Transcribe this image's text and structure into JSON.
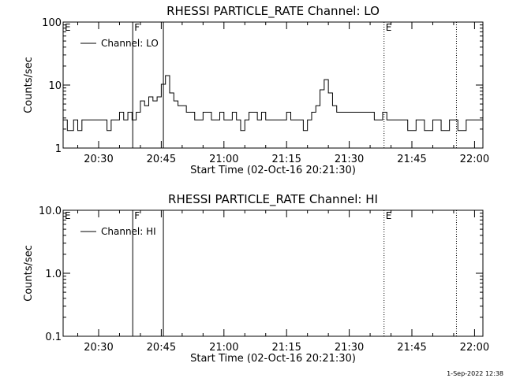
{
  "footer": "1-Sep-2022 12:38",
  "chart_data": [
    {
      "type": "line",
      "title": "RHESSI PARTICLE_RATE Channel: LO",
      "xlabel": "Start Time (02-Oct-16 20:21:30)",
      "ylabel": "Counts/sec",
      "yscale": "log",
      "ylim": [
        1,
        100
      ],
      "yticks": [
        1,
        10,
        100
      ],
      "ytick_labels": [
        "1",
        "10",
        "100"
      ],
      "xlim": [
        "20:21:30",
        "22:02:00"
      ],
      "xticks": [
        "20:30",
        "20:45",
        "21:00",
        "21:15",
        "21:30",
        "21:45",
        "22:00"
      ],
      "legend": {
        "placement": "top-left",
        "entries": [
          "Channel: LO"
        ]
      },
      "grid": false,
      "series": [
        {
          "name": "Channel: LO",
          "step": true,
          "x": [
            "20:21:30",
            "20:22:30",
            "20:24:00",
            "20:25:00",
            "20:26:00",
            "20:27:00",
            "20:28:00",
            "20:29:00",
            "20:30:00",
            "20:31:00",
            "20:32:00",
            "20:33:00",
            "20:34:00",
            "20:35:00",
            "20:36:00",
            "20:37:00",
            "20:38:00",
            "20:39:00",
            "20:40:00",
            "20:41:00",
            "20:42:00",
            "20:43:00",
            "20:44:00",
            "20:45:00",
            "20:46:00",
            "20:47:00",
            "20:48:00",
            "20:49:00",
            "20:50:00",
            "20:51:00",
            "20:52:00",
            "20:53:00",
            "20:55:00",
            "20:57:00",
            "20:59:00",
            "21:00:00",
            "21:01:00",
            "21:02:00",
            "21:03:00",
            "21:04:00",
            "21:05:00",
            "21:06:00",
            "21:07:00",
            "21:08:00",
            "21:09:00",
            "21:10:00",
            "21:12:00",
            "21:14:00",
            "21:15:00",
            "21:16:00",
            "21:17:00",
            "21:18:00",
            "21:19:00",
            "21:20:00",
            "21:21:00",
            "21:22:00",
            "21:23:00",
            "21:24:00",
            "21:25:00",
            "21:26:00",
            "21:27:00",
            "21:28:00",
            "21:30:00",
            "21:32:00",
            "21:34:00",
            "21:36:00",
            "21:38:00",
            "21:39:00",
            "21:40:00",
            "21:42:00",
            "21:44:00",
            "21:46:00",
            "21:48:00",
            "21:50:00",
            "21:52:00",
            "21:54:00",
            "21:56:00",
            "21:58:00"
          ],
          "y": [
            2.8,
            1.9,
            2.8,
            1.9,
            2.8,
            2.8,
            2.8,
            2.8,
            2.8,
            2.8,
            1.9,
            2.8,
            2.8,
            3.7,
            2.8,
            3.7,
            2.8,
            3.7,
            5.6,
            4.7,
            6.5,
            5.6,
            6.5,
            10.3,
            14.1,
            7.5,
            5.6,
            4.7,
            4.7,
            3.7,
            3.7,
            2.8,
            3.7,
            2.8,
            3.7,
            2.8,
            2.8,
            3.7,
            2.8,
            1.9,
            2.8,
            3.7,
            3.7,
            2.8,
            3.7,
            2.8,
            2.8,
            2.8,
            3.7,
            2.8,
            2.8,
            2.8,
            1.9,
            2.8,
            3.7,
            4.7,
            8.4,
            12.2,
            7.5,
            4.7,
            3.7,
            3.7,
            3.7,
            3.7,
            3.7,
            2.8,
            3.7,
            2.8,
            2.8,
            2.8,
            1.9,
            2.8,
            1.9,
            2.8,
            1.9,
            2.8,
            1.9,
            2.8
          ]
        }
      ],
      "markers": [
        {
          "label": "E",
          "time": "20:21:30",
          "style": "dotted"
        },
        {
          "label": "F",
          "time": "20:38:10",
          "style": "solid"
        },
        {
          "label": "",
          "time": "20:45:30",
          "style": "solid"
        },
        {
          "label": "E",
          "time": "21:38:20",
          "style": "dotted"
        },
        {
          "label": "",
          "time": "21:55:40",
          "style": "dotted"
        }
      ]
    },
    {
      "type": "line",
      "title": "RHESSI PARTICLE_RATE Channel: HI",
      "xlabel": "Start Time (02-Oct-16 20:21:30)",
      "ylabel": "Counts/sec",
      "yscale": "log",
      "ylim": [
        0.1,
        10
      ],
      "yticks": [
        0.1,
        1,
        10
      ],
      "ytick_labels": [
        "0.1",
        "1.0",
        "10.0"
      ],
      "xlim": [
        "20:21:30",
        "22:02:00"
      ],
      "xticks": [
        "20:30",
        "20:45",
        "21:00",
        "21:15",
        "21:30",
        "21:45",
        "22:00"
      ],
      "legend": {
        "placement": "top-left",
        "entries": [
          "Channel: HI"
        ]
      },
      "grid": false,
      "series": [
        {
          "name": "Channel: HI",
          "x": [],
          "y": []
        }
      ],
      "markers": [
        {
          "label": "E",
          "time": "20:21:30",
          "style": "dotted"
        },
        {
          "label": "F",
          "time": "20:38:10",
          "style": "solid"
        },
        {
          "label": "",
          "time": "20:45:30",
          "style": "solid"
        },
        {
          "label": "E",
          "time": "21:38:20",
          "style": "dotted"
        },
        {
          "label": "",
          "time": "21:55:40",
          "style": "dotted"
        }
      ]
    }
  ]
}
